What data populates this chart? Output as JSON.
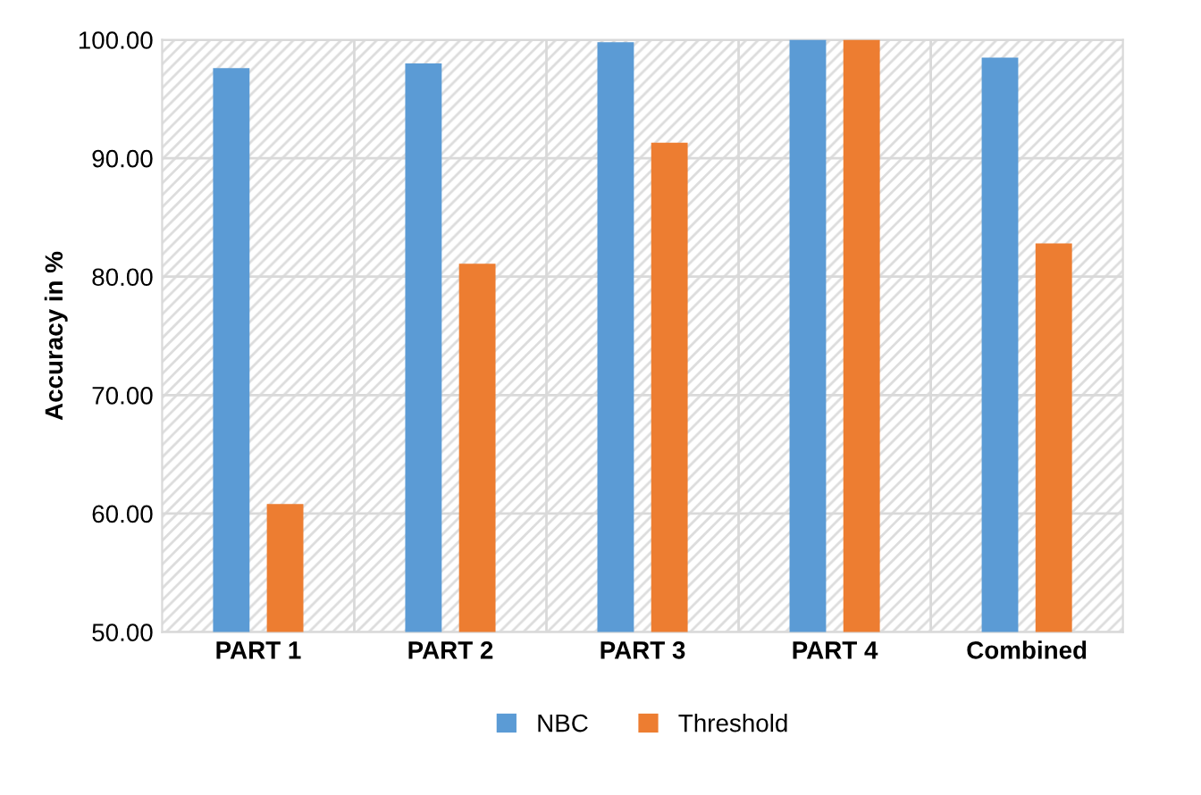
{
  "chart_data": {
    "type": "bar",
    "ylabel": "Accuracy in %",
    "categories": [
      "PART 1",
      "PART 2",
      "PART 3",
      "PART 4",
      "Combined"
    ],
    "series": [
      {
        "name": "NBC",
        "color": "#5b9bd5",
        "values": [
          97.6,
          98.0,
          99.8,
          100.0,
          98.5
        ]
      },
      {
        "name": "Threshold",
        "color": "#ed7d31",
        "values": [
          60.8,
          81.1,
          91.3,
          100.0,
          82.8
        ]
      }
    ],
    "ylim": [
      50,
      100
    ],
    "yticks": [
      {
        "value": 50,
        "label": "50.00"
      },
      {
        "value": 60,
        "label": "60.00"
      },
      {
        "value": 70,
        "label": "70.00"
      },
      {
        "value": 80,
        "label": "80.00"
      },
      {
        "value": 90,
        "label": "90.00"
      },
      {
        "value": 100,
        "label": "100.00"
      }
    ],
    "grid": true,
    "legend": "bottom"
  }
}
